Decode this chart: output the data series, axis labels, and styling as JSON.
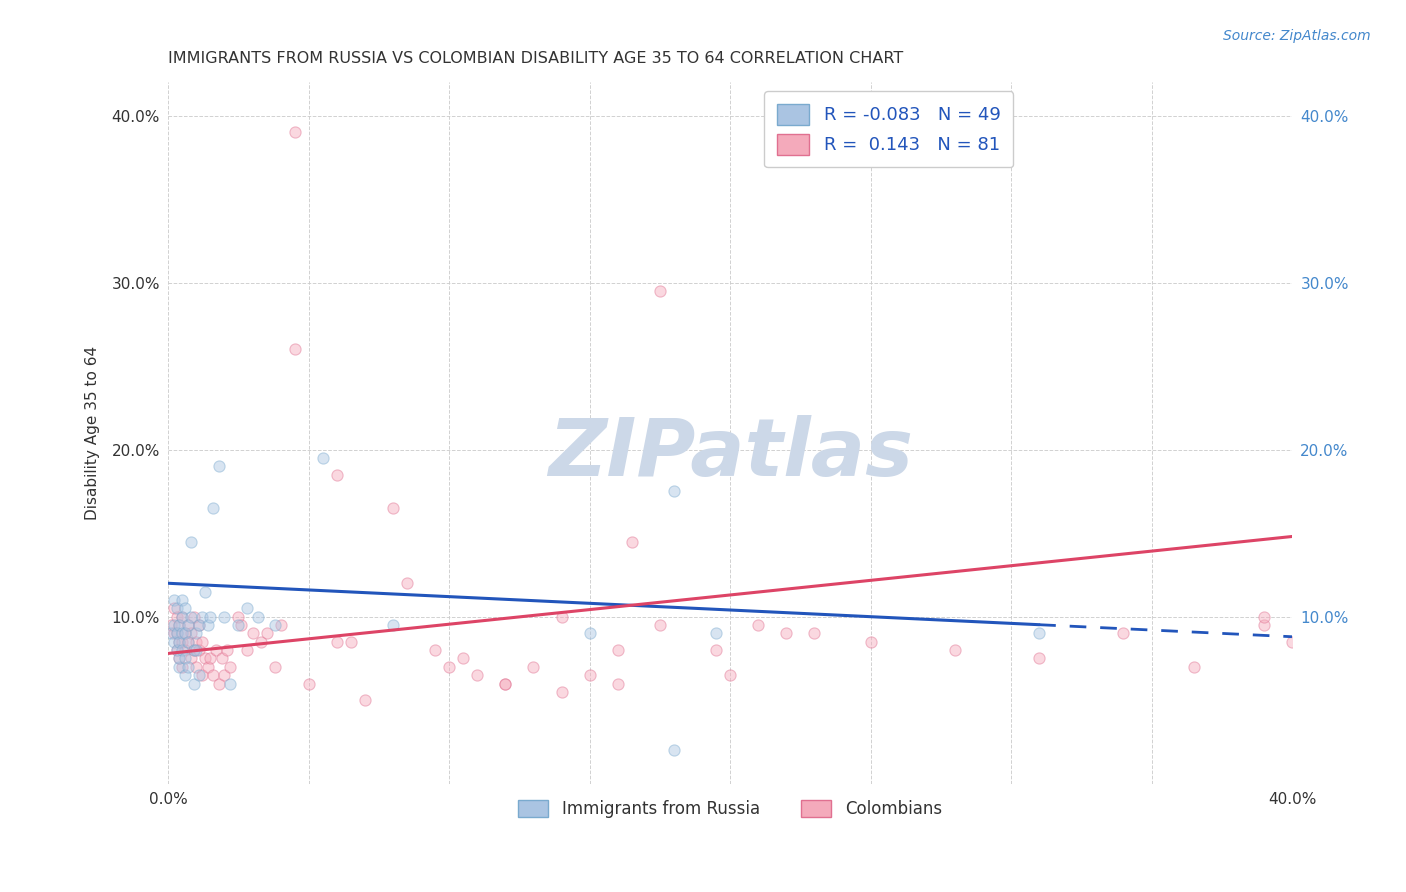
{
  "title": "IMMIGRANTS FROM RUSSIA VS COLOMBIAN DISABILITY AGE 35 TO 64 CORRELATION CHART",
  "source": "Source: ZipAtlas.com",
  "ylabel": "Disability Age 35 to 64",
  "xlim": [
    0.0,
    0.4
  ],
  "ylim": [
    0.0,
    0.42
  ],
  "legend_r1": "-0.083",
  "legend_n1": "49",
  "legend_r2": "0.143",
  "legend_n2": "81",
  "series1_label": "Immigrants from Russia",
  "series2_label": "Colombians",
  "series1_color": "#aac4e2",
  "series2_color": "#f4aabb",
  "series1_edgecolor": "#7aaace",
  "series2_edgecolor": "#e07090",
  "trendline1_color": "#2255bb",
  "trendline2_color": "#dd4466",
  "watermark": "ZIPatlas",
  "watermark_color": "#ccd8e8",
  "background_color": "#ffffff",
  "grid_color": "#cccccc",
  "title_color": "#333333",
  "tick_color_right": "#4488cc",
  "series1_x": [
    0.001,
    0.002,
    0.002,
    0.002,
    0.003,
    0.003,
    0.003,
    0.004,
    0.004,
    0.004,
    0.004,
    0.005,
    0.005,
    0.005,
    0.005,
    0.006,
    0.006,
    0.006,
    0.006,
    0.007,
    0.007,
    0.007,
    0.008,
    0.008,
    0.009,
    0.009,
    0.01,
    0.01,
    0.011,
    0.011,
    0.012,
    0.013,
    0.014,
    0.015,
    0.016,
    0.018,
    0.02,
    0.022,
    0.025,
    0.028,
    0.032,
    0.038,
    0.055,
    0.08,
    0.15,
    0.18,
    0.195,
    0.31,
    0.18
  ],
  "series1_y": [
    0.09,
    0.095,
    0.085,
    0.11,
    0.08,
    0.09,
    0.105,
    0.07,
    0.085,
    0.095,
    0.075,
    0.08,
    0.09,
    0.1,
    0.11,
    0.065,
    0.075,
    0.09,
    0.105,
    0.07,
    0.085,
    0.095,
    0.1,
    0.145,
    0.06,
    0.08,
    0.08,
    0.09,
    0.065,
    0.095,
    0.1,
    0.115,
    0.095,
    0.1,
    0.165,
    0.19,
    0.1,
    0.06,
    0.095,
    0.105,
    0.1,
    0.095,
    0.195,
    0.095,
    0.09,
    0.02,
    0.09,
    0.09,
    0.175
  ],
  "series2_x": [
    0.001,
    0.002,
    0.002,
    0.003,
    0.003,
    0.003,
    0.004,
    0.004,
    0.004,
    0.005,
    0.005,
    0.005,
    0.006,
    0.006,
    0.007,
    0.007,
    0.008,
    0.008,
    0.009,
    0.009,
    0.01,
    0.01,
    0.011,
    0.011,
    0.012,
    0.012,
    0.013,
    0.014,
    0.015,
    0.016,
    0.017,
    0.018,
    0.019,
    0.02,
    0.021,
    0.022,
    0.025,
    0.026,
    0.028,
    0.03,
    0.033,
    0.035,
    0.038,
    0.04,
    0.045,
    0.05,
    0.06,
    0.07,
    0.08,
    0.1,
    0.12,
    0.14,
    0.16,
    0.175,
    0.2,
    0.22,
    0.25,
    0.28,
    0.31,
    0.34,
    0.365,
    0.39,
    0.045,
    0.06,
    0.065,
    0.085,
    0.095,
    0.105,
    0.11,
    0.12,
    0.13,
    0.15,
    0.165,
    0.195,
    0.21,
    0.23,
    0.39,
    0.4,
    0.14,
    0.16,
    0.175
  ],
  "series2_y": [
    0.095,
    0.09,
    0.105,
    0.08,
    0.09,
    0.1,
    0.075,
    0.085,
    0.095,
    0.07,
    0.085,
    0.1,
    0.08,
    0.09,
    0.085,
    0.095,
    0.075,
    0.09,
    0.08,
    0.1,
    0.07,
    0.085,
    0.08,
    0.095,
    0.065,
    0.085,
    0.075,
    0.07,
    0.075,
    0.065,
    0.08,
    0.06,
    0.075,
    0.065,
    0.08,
    0.07,
    0.1,
    0.095,
    0.08,
    0.09,
    0.085,
    0.09,
    0.07,
    0.095,
    0.39,
    0.06,
    0.085,
    0.05,
    0.165,
    0.07,
    0.06,
    0.055,
    0.06,
    0.295,
    0.065,
    0.09,
    0.085,
    0.08,
    0.075,
    0.09,
    0.07,
    0.095,
    0.26,
    0.185,
    0.085,
    0.12,
    0.08,
    0.075,
    0.065,
    0.06,
    0.07,
    0.065,
    0.145,
    0.08,
    0.095,
    0.09,
    0.1,
    0.085,
    0.1,
    0.08,
    0.095
  ],
  "marker_size": 65,
  "marker_alpha": 0.45,
  "trend1_x_start": 0.0,
  "trend1_x_end": 0.4,
  "trend1_y_start": 0.12,
  "trend1_y_end": 0.088,
  "trend1_solid_end": 0.31,
  "trend2_x_start": 0.0,
  "trend2_x_end": 0.4,
  "trend2_y_start": 0.078,
  "trend2_y_end": 0.148
}
